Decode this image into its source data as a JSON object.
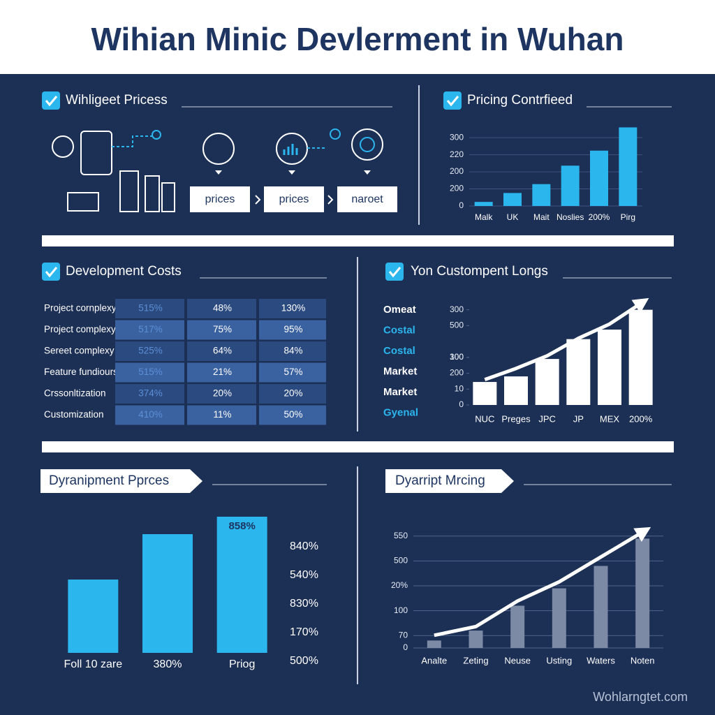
{
  "title": "Wihian Minic Devlerment in Wuhan",
  "watermark": "Wohlarngtet.com",
  "process": {
    "title": "Wihligeet Pricess",
    "steps": [
      "prices",
      "prices",
      "naroet"
    ]
  },
  "table": {
    "title": "Development Costs",
    "rows": [
      [
        "Project cornplexy",
        "515%",
        "48%",
        "130%"
      ],
      [
        "Project complexy",
        "517%",
        "75%",
        "95%"
      ],
      [
        "Sereet complexy",
        "525%",
        "64%",
        "84%"
      ],
      [
        "Feature fundiours",
        "515%",
        "21%",
        "57%"
      ],
      [
        "Crssonltization",
        "374%",
        "20%",
        "20%"
      ],
      [
        "Customization",
        "410%",
        "11%",
        "50%"
      ]
    ]
  },
  "chart_data": [
    {
      "type": "bar",
      "title": "Pricing Contrfieed",
      "color": "#2bb6ee",
      "categories": [
        "Malk",
        "UK",
        "Mait",
        "Noslies",
        "200%",
        "Pirg"
      ],
      "values": [
        24,
        76,
        128,
        236,
        324,
        460
      ],
      "ylim": [
        0,
        470
      ],
      "yticks": [
        0,
        {
          "value": 100,
          "label": "200"
        },
        {
          "value": 200,
          "label": "200"
        },
        {
          "value": 300,
          "label": "220"
        },
        {
          "value": 400,
          "label": "300"
        }
      ],
      "grid": true
    },
    {
      "type": "bar-line",
      "title": "Yon Custompent Longs",
      "side_labels": [
        {
          "text": "Omeat",
          "color": "#ffffff"
        },
        {
          "text": "Costal",
          "color": "#2bb6ee"
        },
        {
          "text": "Costal",
          "color": "#2bb6ee"
        },
        {
          "text": "Market",
          "color": "#ffffff"
        },
        {
          "text": "Market",
          "color": "#ffffff"
        },
        {
          "text": "Gyenal",
          "color": "#2bb6ee"
        }
      ],
      "categories": [
        "NUC",
        "Preges",
        "JPC",
        "JP",
        "MEX",
        "200%"
      ],
      "series": [
        {
          "color": "#ffffff",
          "values": [
            145,
            180,
            290,
            415,
            475,
            600
          ]
        },
        {
          "color": "#ffffff",
          "values": [
            160,
            230,
            310,
            420,
            510,
            640
          ]
        }
      ],
      "ylim": [
        0,
        660
      ],
      "yticks": [
        0,
        {
          "value": 100,
          "label": "10"
        },
        200,
        {
          "value": 300,
          "label": "100"
        },
        300,
        500,
        {
          "value": 600,
          "label": "300"
        }
      ],
      "grid": false
    },
    {
      "type": "bar",
      "title": "Dyranipment Pprces",
      "color": "#2bb6ee",
      "categories": [
        "Foll 10 zare",
        "380%",
        "Priog"
      ],
      "values": [
        462,
        748,
        858
      ],
      "value_labels": [
        null,
        null,
        "858%"
      ],
      "side_labels": [
        "840%",
        "540%",
        "830%",
        "170%",
        "500%"
      ]
    },
    {
      "type": "bar-line",
      "title": "Dyarript Mrcing",
      "categories": [
        "Analte",
        "Zeting",
        "Neuse",
        "Usting",
        "Waters",
        "Noten"
      ],
      "series": [
        {
          "color": "#7c8aa6",
          "values": [
            30,
            70,
            170,
            240,
            330,
            440
          ]
        },
        {
          "color": "#ffffff",
          "values": [
            51,
            86,
            189,
            266,
            366,
            466
          ]
        }
      ],
      "ylim": [
        0,
        500
      ],
      "yticks": [
        0,
        {
          "value": 50,
          "label": "70"
        },
        {
          "value": 150,
          "label": "100"
        },
        {
          "value": 250,
          "label": "20%"
        },
        {
          "value": 350,
          "label": "500"
        },
        {
          "value": 450,
          "label": "550"
        }
      ],
      "grid": true
    }
  ]
}
